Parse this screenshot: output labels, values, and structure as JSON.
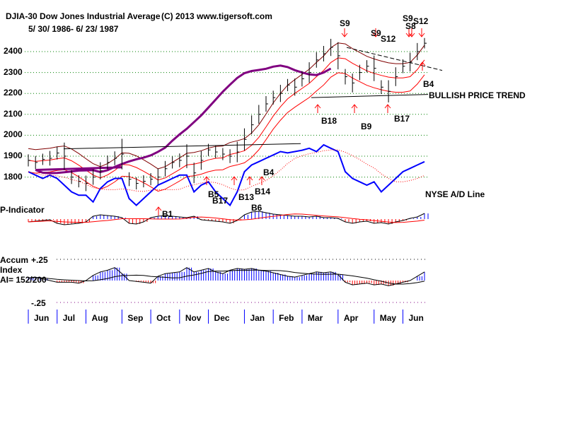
{
  "header": {
    "title": "DJIA-30  Dow Jones Industrial Average",
    "copyright": "(C) 2013 www.tigersoft.com",
    "date_range": "5/ 30/ 1986- 6/ 23/ 1987"
  },
  "colors": {
    "price": "#000000",
    "ad_line": "#0000ff",
    "ma_purple": "#800080",
    "bands": "#ff0000",
    "grid": "#008000",
    "positive": "#0000ff",
    "negative": "#ff0000"
  },
  "chart_data": [
    {
      "type": "line",
      "title": "DJIA-30 Dow Jones Industrial Average",
      "ylabel": "",
      "ylim": [
        1700,
        2500
      ],
      "yticks": [
        "2400",
        "2300",
        "2200",
        "2100",
        "2000",
        "1900",
        "1800"
      ],
      "xticks": [
        "Jun",
        "Jul",
        "Aug",
        "Sep",
        "Oct",
        "Nov",
        "Dec",
        "Jan",
        "Feb",
        "Mar",
        "Apr",
        "May",
        "Jun"
      ],
      "x_weeks_per_month": [
        4,
        4,
        5,
        4,
        4,
        4,
        5,
        4,
        4,
        5,
        5,
        4,
        4
      ],
      "series": [
        {
          "name": "DJIA weekly close",
          "values": [
            1880,
            1870,
            1885,
            1890,
            1915,
            1900,
            1800,
            1780,
            1770,
            1800,
            1830,
            1870,
            1890,
            1910,
            1790,
            1770,
            1780,
            1790,
            1800,
            1840,
            1870,
            1880,
            1900,
            1820,
            1880,
            1930,
            1920,
            1910,
            1900,
            1920,
            1980,
            2050,
            2100,
            2150,
            2180,
            2200,
            2240,
            2230,
            2270,
            2300,
            2360,
            2390,
            2420,
            2380,
            2280,
            2250,
            2300,
            2330,
            2320,
            2230,
            2210,
            2280,
            2330,
            2350,
            2400,
            2440
          ]
        },
        {
          "name": "NYSE A/D Line",
          "values": [
            60,
            55,
            50,
            55,
            50,
            40,
            30,
            25,
            25,
            15,
            35,
            45,
            50,
            50,
            20,
            10,
            20,
            30,
            40,
            45,
            50,
            55,
            55,
            30,
            40,
            45,
            30,
            20,
            10,
            30,
            60,
            70,
            75,
            80,
            85,
            90,
            88,
            90,
            92,
            95,
            90,
            100,
            95,
            90,
            60,
            50,
            45,
            40,
            45,
            30,
            40,
            50,
            60,
            65,
            70,
            75
          ]
        }
      ],
      "annotations": {
        "s9a": "S9",
        "s9b": "S9",
        "s12a": "S12",
        "s9c": "S9",
        "s8": "S8",
        "s12b": "S12",
        "b4a": "B4",
        "b18": "B18",
        "b9": "B9",
        "b17a": "B17",
        "b4b": "B4",
        "b14": "B14",
        "b13": "B13",
        "b6": "B6",
        "b5": "B5",
        "b17b": "B17",
        "b1": "B1",
        "trend": "BULLISH PRICE TREND",
        "ad_label": "NYSE A/D Line"
      }
    },
    {
      "type": "bar",
      "title": "P-Indicator",
      "values": [
        -20,
        -15,
        -10,
        -5,
        -30,
        -40,
        -35,
        -30,
        -20,
        20,
        30,
        25,
        20,
        10,
        -30,
        -35,
        -20,
        10,
        20,
        25,
        20,
        15,
        10,
        20,
        -5,
        -10,
        -15,
        -20,
        -30,
        -10,
        30,
        50,
        55,
        45,
        35,
        30,
        25,
        20,
        20,
        15,
        20,
        10,
        10,
        5,
        -20,
        -30,
        -20,
        -15,
        -30,
        -25,
        -35,
        -20,
        -10,
        5,
        15,
        40
      ]
    },
    {
      "type": "bar",
      "title": "Accum Index",
      "ylim": [
        -0.25,
        0.25
      ],
      "yticks": [
        "+.25",
        "-.25"
      ],
      "ai_label": "AI= 152/200",
      "values": [
        0.03,
        0.04,
        0.02,
        0.0,
        -0.02,
        -0.02,
        -0.02,
        -0.03,
        0.0,
        0.06,
        0.1,
        0.12,
        0.15,
        0.08,
        0.0,
        -0.01,
        -0.02,
        -0.03,
        0.05,
        0.08,
        0.09,
        0.1,
        0.15,
        0.1,
        0.12,
        0.14,
        0.1,
        0.08,
        0.12,
        0.14,
        0.13,
        0.14,
        0.12,
        0.11,
        0.09,
        0.07,
        0.05,
        0.04,
        0.06,
        0.08,
        0.1,
        0.09,
        0.1,
        0.07,
        -0.02,
        -0.05,
        -0.04,
        -0.03,
        -0.05,
        -0.04,
        -0.06,
        -0.04,
        -0.02,
        0.0,
        0.05,
        0.1
      ]
    }
  ],
  "labels": {
    "p_indicator": "P-Indicator",
    "accum": "Accum",
    "index": "Index"
  }
}
